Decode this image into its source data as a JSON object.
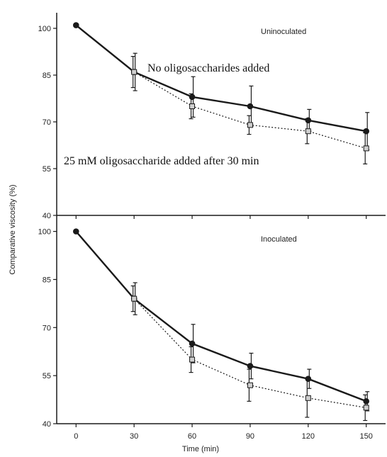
{
  "chart_data": [
    {
      "type": "line",
      "panel_label": "Uninoculated",
      "ylabel": "Comparative viscosity (%)",
      "xlabel": "Time (min)",
      "ylim": [
        40,
        105
      ],
      "y_ticks": [
        "100",
        "85",
        "70",
        "55",
        "40"
      ],
      "x_ticks": [
        "0",
        "30",
        "60",
        "90",
        "120",
        "150"
      ],
      "x_range": [
        -10,
        160
      ],
      "annotations": [
        "No oligosaccharides added",
        "25 mM oligosaccharide added after 30 min"
      ],
      "series": [
        {
          "style": "solid-filled-circle",
          "x": [
            0,
            30,
            60,
            90,
            120,
            150
          ],
          "values": [
            101,
            86,
            78,
            75,
            70.5,
            67
          ],
          "err": [
            0,
            6,
            6.5,
            6.5,
            3.5,
            6
          ]
        },
        {
          "style": "dotted-open-square",
          "x": [
            30,
            60,
            90,
            120,
            150
          ],
          "values": [
            86,
            75,
            69,
            67,
            61.5
          ],
          "err": [
            5,
            4,
            3,
            4,
            5
          ]
        }
      ]
    },
    {
      "type": "line",
      "panel_label": "Inoculated",
      "xlabel": "Time (min)",
      "ylim": [
        40,
        105
      ],
      "y_ticks": [
        "100",
        "85",
        "70",
        "55",
        "40"
      ],
      "x_ticks": [
        "0",
        "30",
        "60",
        "90",
        "120",
        "150"
      ],
      "x_range": [
        -10,
        160
      ],
      "series": [
        {
          "style": "solid-filled-circle",
          "x": [
            0,
            30,
            60,
            90,
            120,
            150
          ],
          "values": [
            100,
            79,
            65,
            58,
            54,
            47
          ],
          "err": [
            0,
            5,
            6,
            4,
            3,
            3
          ]
        },
        {
          "style": "dotted-open-square",
          "x": [
            30,
            60,
            90,
            120,
            150
          ],
          "values": [
            79,
            60,
            52,
            48,
            45
          ],
          "err": [
            4,
            4,
            5,
            6,
            4
          ]
        }
      ]
    }
  ],
  "colors": {
    "ink": "#1a1a1a",
    "hollow_fill": "#cfcfcf"
  }
}
